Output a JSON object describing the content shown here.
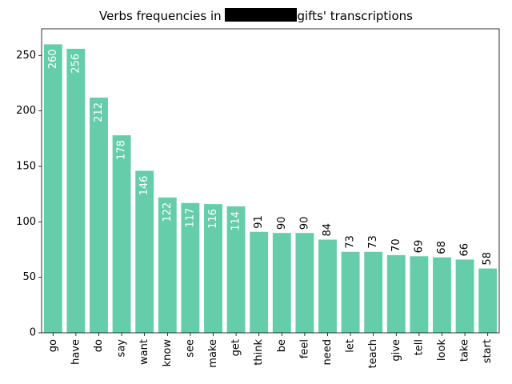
{
  "chart_data": {
    "type": "bar",
    "title_prefix": "Verbs frequencies in ",
    "title_suffix": "gifts' transcriptions",
    "xlabel": "",
    "ylabel": "",
    "ylim": [
      0,
      274
    ],
    "yticks": [
      0,
      50,
      100,
      150,
      200,
      250
    ],
    "bar_color": "#66cdaa",
    "label_threshold": 100,
    "inside_label_color": "#ffffff",
    "outside_label_color": "#000000",
    "grid": false,
    "categories": [
      "go",
      "have",
      "do",
      "say",
      "want",
      "know",
      "see",
      "make",
      "get",
      "think",
      "be",
      "feel",
      "need",
      "let",
      "teach",
      "give",
      "tell",
      "look",
      "take",
      "start"
    ],
    "values": [
      260,
      256,
      212,
      178,
      146,
      122,
      117,
      116,
      114,
      91,
      90,
      90,
      84,
      73,
      73,
      70,
      69,
      68,
      66,
      58
    ]
  }
}
